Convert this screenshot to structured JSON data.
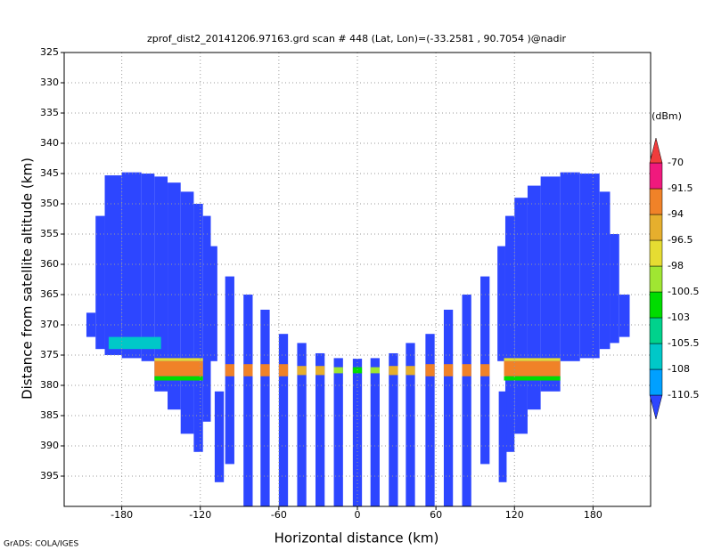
{
  "chart_data": {
    "type": "field",
    "title": "zprof_dist2_20141206.97163.grd  scan # 448  (Lat, Lon)=(-33.2581 , 90.7054 )@nadir",
    "xlabel": "Horizontal distance (km)",
    "ylabel": "Distance from satellite altitude (km)",
    "footer": "GrADS: COLA/IGES",
    "colorbar_title": "(dBm)",
    "xlim": [
      -224,
      224
    ],
    "ylim": [
      325,
      400
    ],
    "y_reversed": true,
    "xticks": [
      -180,
      -120,
      -60,
      0,
      60,
      120,
      180
    ],
    "yticks": [
      325,
      330,
      335,
      340,
      345,
      350,
      355,
      360,
      365,
      370,
      375,
      380,
      385,
      390,
      395
    ],
    "grid": true,
    "levels": [
      -110.5,
      -108,
      -105.5,
      -103,
      -100.5,
      -98,
      -96.5,
      -94,
      -91.5,
      -70
    ],
    "colors": [
      "#2d46ff",
      "#00a0ff",
      "#00c8c8",
      "#00d28c",
      "#00dc00",
      "#a0e632",
      "#e6dc32",
      "#e6af2d",
      "#f08228",
      "#f0197d",
      "#f03c3c"
    ],
    "cell_fields": [
      "x0",
      "x1",
      "top",
      "bottom",
      "value"
    ],
    "cells": [
      [
        -207,
        -200,
        368,
        372,
        -111
      ],
      [
        -200,
        -193,
        352,
        374,
        -111
      ],
      [
        -193,
        -180,
        345.3,
        375,
        -111
      ],
      [
        -180,
        -165,
        344.8,
        375.5,
        -111
      ],
      [
        -165,
        -155,
        345,
        376,
        -111
      ],
      [
        -155,
        -145,
        345.5,
        381,
        -111
      ],
      [
        -145,
        -135,
        346.5,
        384,
        -111
      ],
      [
        -135,
        -125,
        348,
        388,
        -111
      ],
      [
        -125,
        -118,
        350,
        391,
        -111
      ],
      [
        -118,
        -112,
        352,
        386,
        -111
      ],
      [
        -112,
        -107,
        357,
        376,
        -111
      ],
      [
        -190,
        -150,
        372,
        374,
        -107
      ],
      [
        -155,
        -118,
        375.5,
        376,
        -97
      ],
      [
        -155,
        -118,
        376,
        378.5,
        -92
      ],
      [
        -155,
        -118,
        378.5,
        379.2,
        -101
      ],
      [
        107,
        113,
        357,
        376,
        -111
      ],
      [
        113,
        120,
        352,
        391,
        -111
      ],
      [
        120,
        130,
        349,
        388,
        -111
      ],
      [
        130,
        140,
        347,
        384,
        -111
      ],
      [
        140,
        155,
        345.5,
        381,
        -111
      ],
      [
        155,
        170,
        344.8,
        376,
        -111
      ],
      [
        170,
        185,
        345,
        375.5,
        -111
      ],
      [
        185,
        193,
        348,
        374,
        -111
      ],
      [
        193,
        200,
        355,
        373,
        -111
      ],
      [
        200,
        208,
        365,
        372,
        -111
      ],
      [
        112,
        155,
        375.5,
        376,
        -97
      ],
      [
        112,
        155,
        376,
        378.5,
        -92
      ],
      [
        112,
        155,
        378.5,
        379.2,
        -101
      ],
      [
        -109,
        -102,
        381,
        396,
        -111
      ],
      [
        -101,
        -94,
        362,
        393,
        -111
      ],
      [
        -87,
        -80,
        365,
        400,
        -111
      ],
      [
        -74,
        -67,
        367.5,
        400,
        -111
      ],
      [
        -60,
        -53,
        371.5,
        400,
        -111
      ],
      [
        -46,
        -39,
        373,
        400,
        -111
      ],
      [
        -32,
        -25,
        374.7,
        400,
        -111
      ],
      [
        -18,
        -11,
        375.5,
        400,
        -111
      ],
      [
        -3.5,
        3.5,
        375.6,
        400,
        -111
      ],
      [
        10,
        17,
        375.5,
        400,
        -111
      ],
      [
        24,
        31,
        374.7,
        400,
        -111
      ],
      [
        37,
        44,
        373,
        400,
        -111
      ],
      [
        52,
        59,
        371.5,
        400,
        -111
      ],
      [
        66,
        73,
        367.5,
        400,
        -111
      ],
      [
        80,
        87,
        365,
        400,
        -111
      ],
      [
        94,
        101,
        362,
        393,
        -111
      ],
      [
        108,
        114,
        381,
        396,
        -111
      ],
      [
        -101,
        -94,
        376.5,
        378.5,
        -92
      ],
      [
        -87,
        -80,
        376.5,
        378.5,
        -92
      ],
      [
        -74,
        -67,
        376.5,
        378.5,
        -92
      ],
      [
        -60,
        -53,
        376.5,
        378.5,
        -92
      ],
      [
        -46,
        -39,
        376.8,
        378.3,
        -95
      ],
      [
        -32,
        -25,
        376.8,
        378.3,
        -95
      ],
      [
        -18,
        -11,
        377,
        378,
        -99
      ],
      [
        -3.5,
        3.5,
        377,
        378,
        -101
      ],
      [
        10,
        17,
        377,
        378,
        -99
      ],
      [
        24,
        31,
        376.8,
        378.3,
        -95
      ],
      [
        37,
        44,
        376.8,
        378.3,
        -95
      ],
      [
        52,
        59,
        376.5,
        378.5,
        -92
      ],
      [
        66,
        73,
        376.5,
        378.5,
        -92
      ],
      [
        80,
        87,
        376.5,
        378.5,
        -92
      ],
      [
        94,
        101,
        376.5,
        378.5,
        -92
      ]
    ]
  }
}
